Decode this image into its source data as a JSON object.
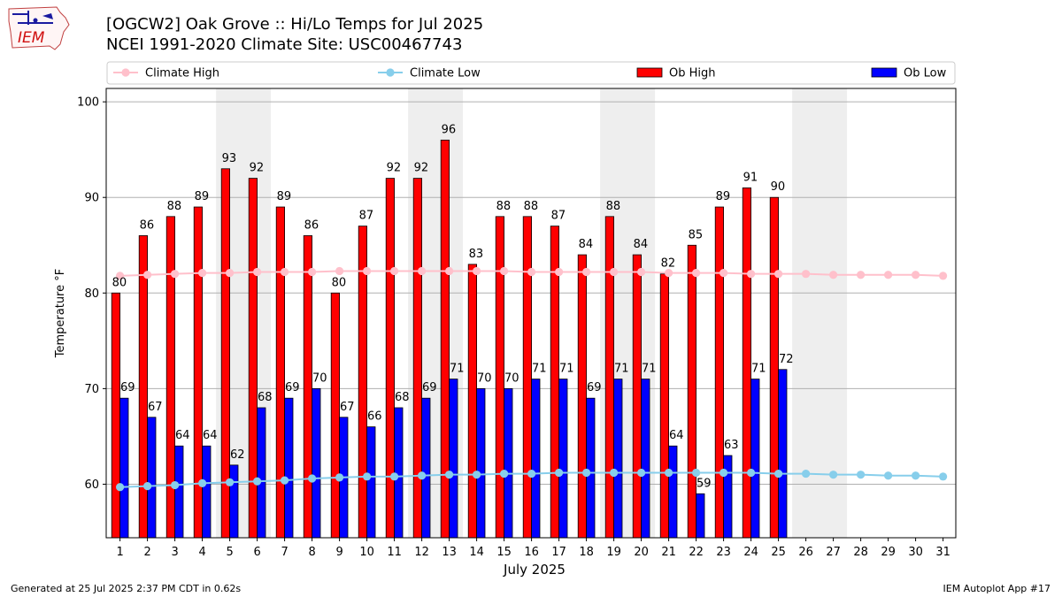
{
  "header": {
    "title": "[OGCW2] Oak Grove :: Hi/Lo Temps for Jul 2025",
    "subtitle": "NCEI 1991-2020 Climate Site: USC00467743",
    "logo_text": "IEM"
  },
  "footer": {
    "generated": "Generated at 25 Jul 2025 2:37 PM CDT in 0.62s",
    "app": "IEM Autoplot App #17"
  },
  "colors": {
    "ob_high": "#ff0000",
    "ob_low": "#0000ff",
    "climate_high": "#ffc0cb",
    "climate_low": "#87ceeb",
    "weekend_shade": "#eeeeee",
    "grid": "#b0b0b0"
  },
  "chart_data": {
    "type": "bar",
    "xlabel": "July 2025",
    "ylabel": "Temperature °F",
    "ylim": [
      54.4,
      101.4
    ],
    "yticks": [
      60,
      70,
      80,
      90,
      100
    ],
    "grid": true,
    "legend_position": "top",
    "categories": [
      "1",
      "2",
      "3",
      "4",
      "5",
      "6",
      "7",
      "8",
      "9",
      "10",
      "11",
      "12",
      "13",
      "14",
      "15",
      "16",
      "17",
      "18",
      "19",
      "20",
      "21",
      "22",
      "23",
      "24",
      "25",
      "26",
      "27",
      "28",
      "29",
      "30",
      "31"
    ],
    "weekend_shaded_days": [
      [
        5,
        6
      ],
      [
        12,
        13
      ],
      [
        19,
        20
      ],
      [
        26,
        27
      ]
    ],
    "series": [
      {
        "name": "Climate High",
        "kind": "line",
        "values": [
          81.8,
          81.9,
          82.0,
          82.1,
          82.1,
          82.2,
          82.2,
          82.2,
          82.3,
          82.3,
          82.3,
          82.3,
          82.3,
          82.3,
          82.3,
          82.2,
          82.2,
          82.2,
          82.2,
          82.2,
          82.1,
          82.1,
          82.1,
          82.0,
          82.0,
          82.0,
          81.9,
          81.9,
          81.9,
          81.9,
          81.8
        ]
      },
      {
        "name": "Climate Low",
        "kind": "line",
        "values": [
          59.7,
          59.8,
          59.9,
          60.1,
          60.2,
          60.3,
          60.4,
          60.6,
          60.7,
          60.8,
          60.8,
          60.9,
          61.0,
          61.0,
          61.1,
          61.1,
          61.2,
          61.2,
          61.2,
          61.2,
          61.2,
          61.2,
          61.2,
          61.2,
          61.1,
          61.1,
          61.0,
          61.0,
          60.9,
          60.9,
          60.8
        ]
      },
      {
        "name": "Ob High",
        "kind": "bar",
        "values": [
          80,
          86,
          88,
          89,
          93,
          92,
          89,
          86,
          80,
          87,
          92,
          92,
          96,
          83,
          88,
          88,
          87,
          84,
          88,
          84,
          82,
          85,
          89,
          91,
          90,
          null,
          null,
          null,
          null,
          null,
          null
        ]
      },
      {
        "name": "Ob Low",
        "kind": "bar",
        "values": [
          69,
          67,
          64,
          64,
          62,
          68,
          69,
          70,
          67,
          66,
          68,
          69,
          71,
          70,
          70,
          71,
          71,
          69,
          71,
          71,
          64,
          59,
          63,
          71,
          72,
          null,
          null,
          null,
          null,
          null,
          null
        ]
      }
    ]
  }
}
